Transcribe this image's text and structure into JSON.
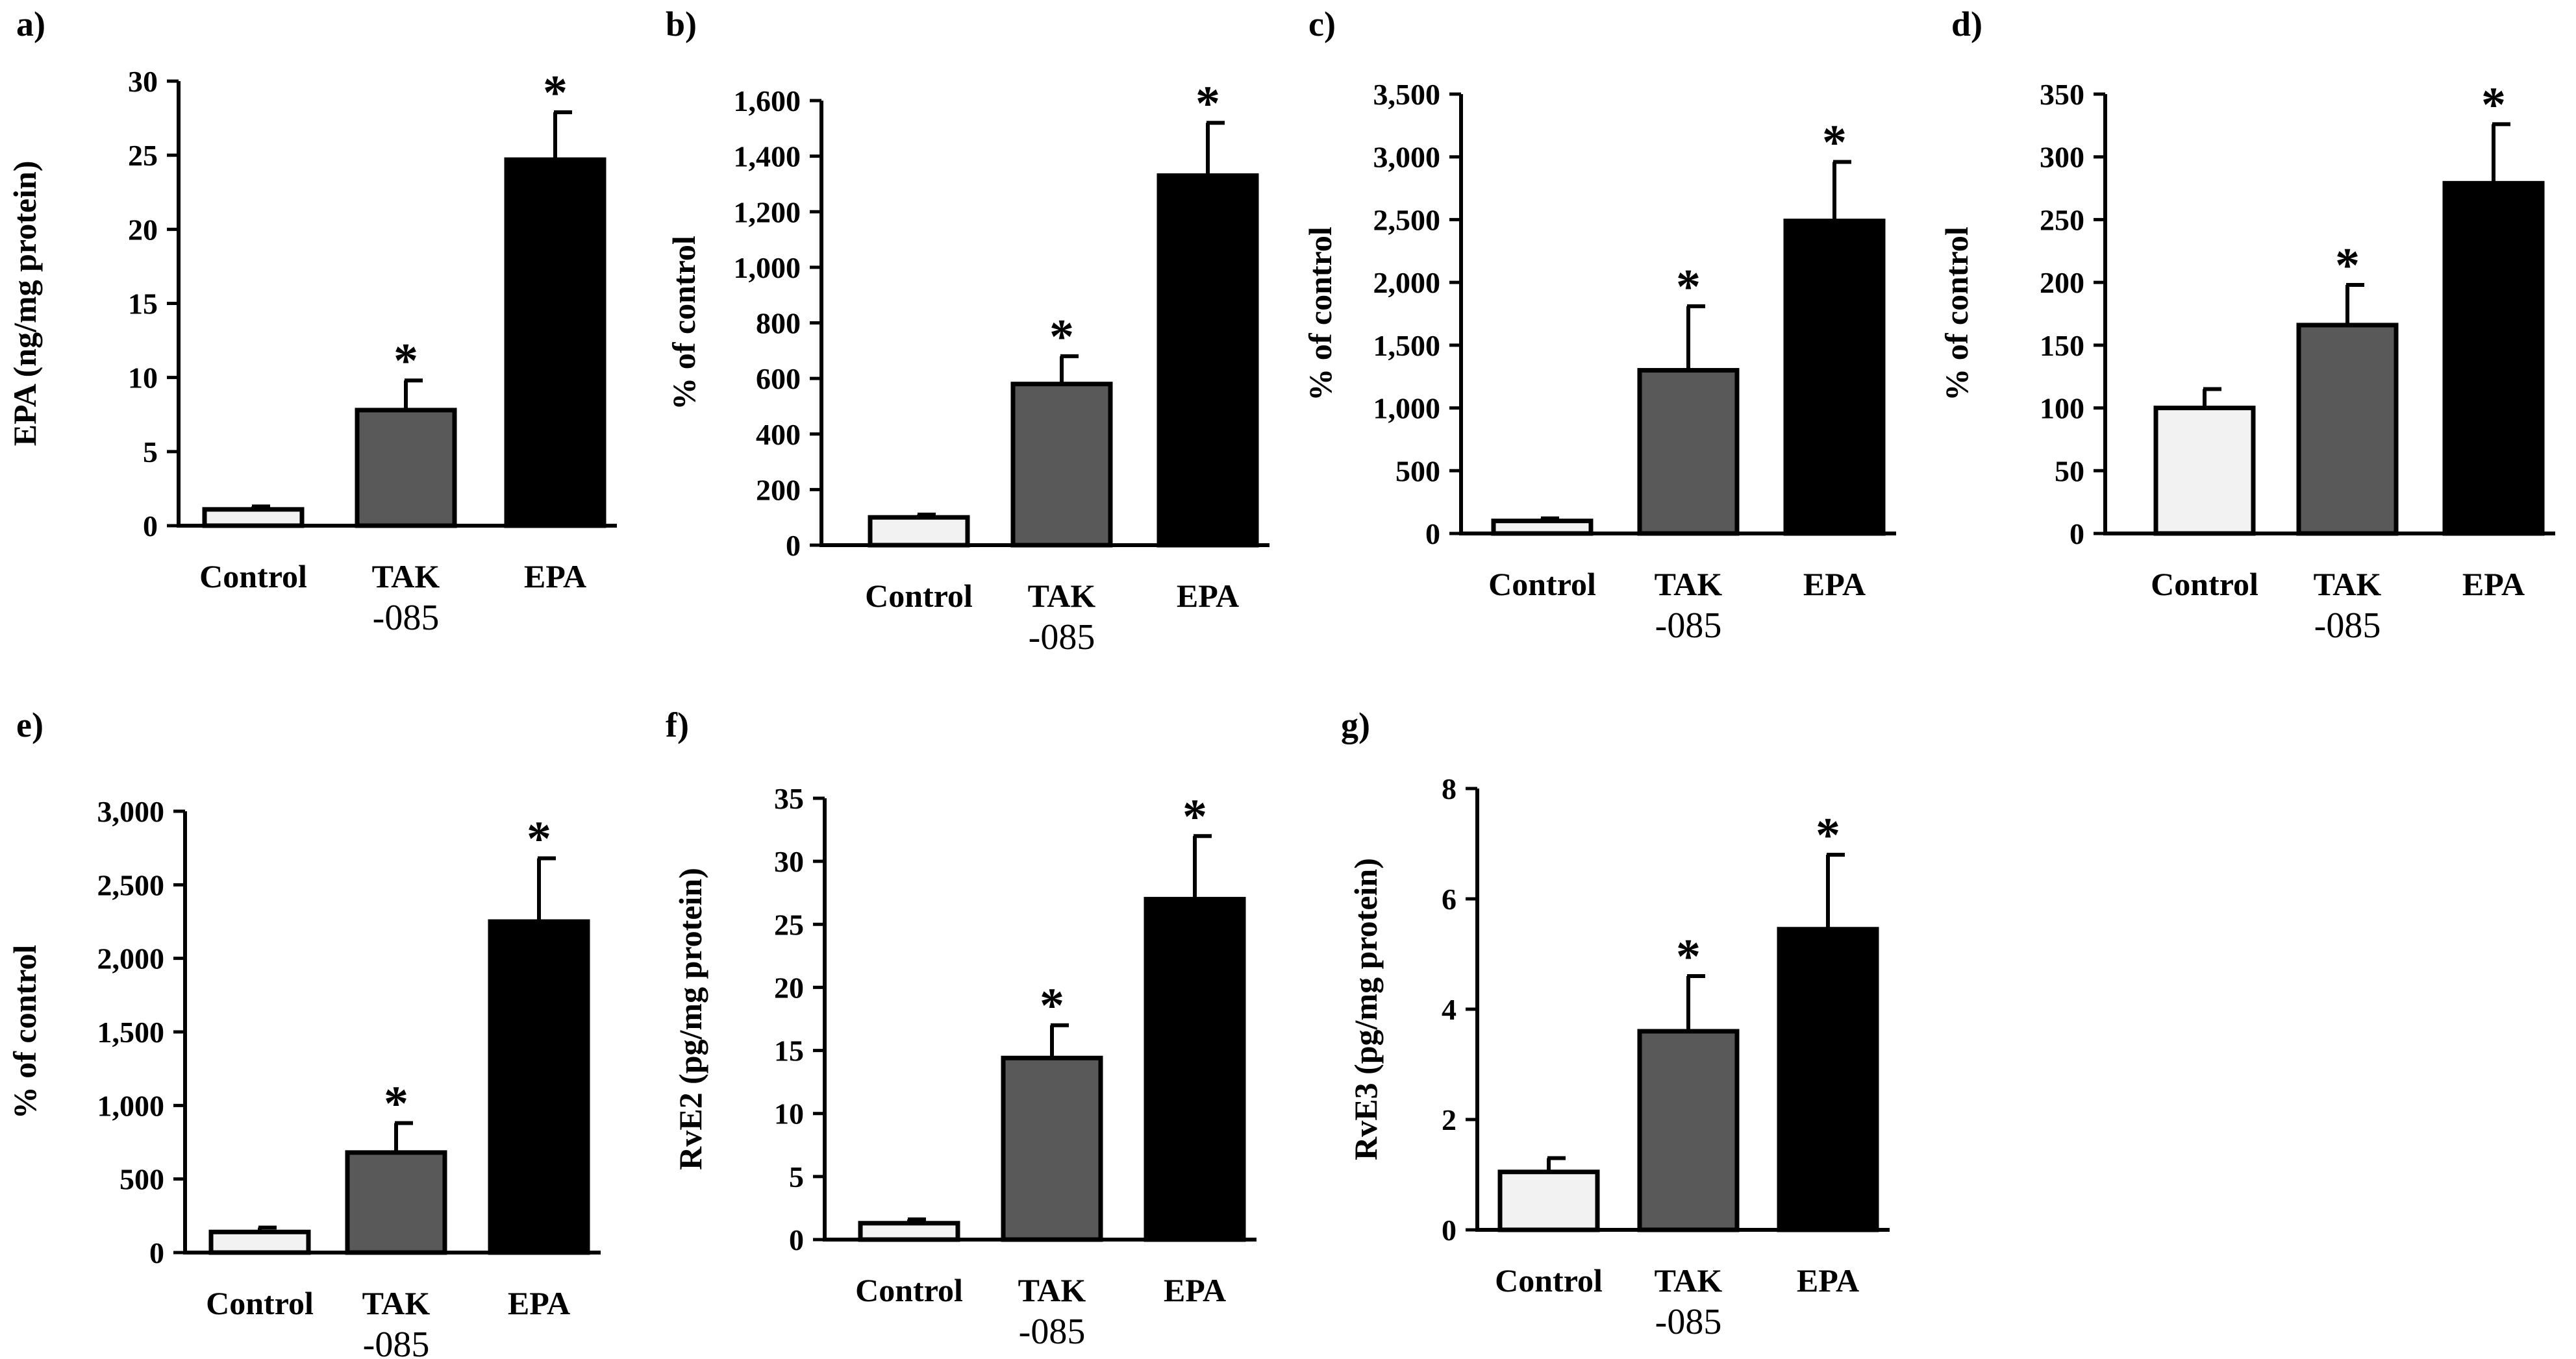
{
  "colors": {
    "control": "#f2f2f2",
    "tak": "#595959",
    "epa": "#000000",
    "axis": "#000000"
  },
  "chart_data": [
    {
      "type": "bar",
      "panel_label": "a)",
      "ylabel": "EPA (ng/mg protein)",
      "ylim": [
        0,
        30
      ],
      "yticks": [
        0,
        5,
        10,
        15,
        20,
        25,
        30
      ],
      "ytick_labels": [
        "0",
        "5",
        "10",
        "15",
        "20",
        "25",
        "30"
      ],
      "categories": [
        [
          "Control",
          ""
        ],
        [
          "TAK",
          "-085"
        ],
        [
          "EPA",
          ""
        ]
      ],
      "values": [
        1.1,
        7.8,
        24.7
      ],
      "errors": [
        0.2,
        2.0,
        3.2
      ],
      "significance": [
        "",
        "*",
        "*"
      ]
    },
    {
      "type": "bar",
      "panel_label": "b)",
      "ylabel": "% of control",
      "ylim": [
        0,
        1600
      ],
      "yticks": [
        0,
        200,
        400,
        600,
        800,
        1000,
        1200,
        1400,
        1600
      ],
      "ytick_labels": [
        "0",
        "200",
        "400",
        "600",
        "800",
        "1,000",
        "1,200",
        "1,400",
        "1,600"
      ],
      "categories": [
        [
          "Control",
          ""
        ],
        [
          "TAK",
          "-085"
        ],
        [
          "EPA",
          ""
        ]
      ],
      "values": [
        100,
        580,
        1330
      ],
      "errors": [
        10,
        100,
        190
      ],
      "significance": [
        "",
        "*",
        "*"
      ]
    },
    {
      "type": "bar",
      "panel_label": "c)",
      "ylabel": "% of control",
      "ylim": [
        0,
        3500
      ],
      "yticks": [
        0,
        500,
        1000,
        1500,
        2000,
        2500,
        3000,
        3500
      ],
      "ytick_labels": [
        "0",
        "500",
        "1,000",
        "1,500",
        "2,000",
        "2,500",
        "3,000",
        "3,500"
      ],
      "categories": [
        [
          "Control",
          ""
        ],
        [
          "TAK",
          "-085"
        ],
        [
          "EPA",
          ""
        ]
      ],
      "values": [
        100,
        1300,
        2490
      ],
      "errors": [
        20,
        510,
        470
      ],
      "significance": [
        "",
        "*",
        "*"
      ]
    },
    {
      "type": "bar",
      "panel_label": "d)",
      "ylabel": "% of control",
      "ylim": [
        0,
        350
      ],
      "yticks": [
        0,
        50,
        100,
        150,
        200,
        250,
        300,
        350
      ],
      "ytick_labels": [
        "0",
        "50",
        "100",
        "150",
        "200",
        "250",
        "300",
        "350"
      ],
      "categories": [
        [
          "Control",
          ""
        ],
        [
          "TAK",
          "-085"
        ],
        [
          "EPA",
          ""
        ]
      ],
      "values": [
        100,
        166,
        279
      ],
      "errors": [
        15,
        32,
        47
      ],
      "significance": [
        "",
        "*",
        "*"
      ]
    },
    {
      "type": "bar",
      "panel_label": "e)",
      "ylabel": "% of control",
      "ylim": [
        0,
        3000
      ],
      "yticks": [
        0,
        500,
        1000,
        1500,
        2000,
        2500,
        3000
      ],
      "ytick_labels": [
        "0",
        "500",
        "1,000",
        "1,500",
        "2,000",
        "2,500",
        "3,000"
      ],
      "categories": [
        [
          "Control",
          ""
        ],
        [
          "TAK",
          "-085"
        ],
        [
          "EPA",
          ""
        ]
      ],
      "values": [
        140,
        680,
        2250
      ],
      "errors": [
        30,
        200,
        430
      ],
      "significance": [
        "",
        "*",
        "*"
      ]
    },
    {
      "type": "bar",
      "panel_label": "f)",
      "ylabel": "RvE2 (pg/mg protein)",
      "ylim": [
        0,
        35
      ],
      "yticks": [
        0,
        5,
        10,
        15,
        20,
        25,
        30,
        35
      ],
      "ytick_labels": [
        "0",
        "5",
        "10",
        "15",
        "20",
        "25",
        "30",
        "35"
      ],
      "categories": [
        [
          "Control",
          ""
        ],
        [
          "TAK",
          "-085"
        ],
        [
          "EPA",
          ""
        ]
      ],
      "values": [
        1.3,
        14.4,
        27.0
      ],
      "errors": [
        0.3,
        2.6,
        5.0
      ],
      "significance": [
        "",
        "*",
        "*"
      ]
    },
    {
      "type": "bar",
      "panel_label": "g)",
      "ylabel": "RvE3 (pg/mg protein)",
      "ylim": [
        0,
        8
      ],
      "yticks": [
        0,
        2,
        4,
        6,
        8
      ],
      "ytick_labels": [
        "0",
        "2",
        "4",
        "6",
        "8"
      ],
      "categories": [
        [
          "Control",
          ""
        ],
        [
          "TAK",
          "-085"
        ],
        [
          "EPA",
          ""
        ]
      ],
      "values": [
        1.05,
        3.6,
        5.45
      ],
      "errors": [
        0.25,
        1.0,
        1.35
      ],
      "significance": [
        "",
        "*",
        "*"
      ]
    }
  ]
}
